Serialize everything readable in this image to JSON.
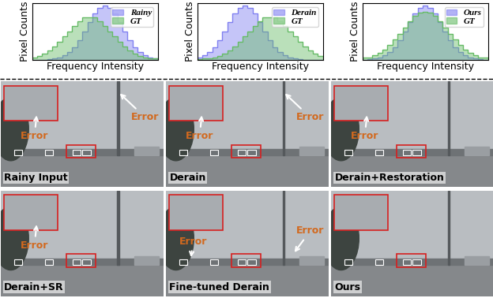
{
  "chart_data": [
    {
      "type": "histogram",
      "x_label": "Frequency Intensity",
      "y_label": "Pixel Counts",
      "bins": [
        0,
        1,
        2,
        3,
        4,
        5,
        6,
        7,
        8,
        9,
        10,
        11,
        12,
        13,
        14,
        15,
        16,
        17,
        18,
        19,
        20,
        21,
        22,
        23,
        24,
        25
      ],
      "xlim": [
        0,
        25
      ],
      "ylim": [
        0,
        100
      ],
      "tick_labels": false,
      "legend": "upper right",
      "series": [
        {
          "name": "Rainy",
          "color": "#8080f0",
          "values": [
            0,
            0,
            0,
            1,
            2,
            4,
            8,
            13,
            22,
            34,
            49,
            66,
            81,
            91,
            95,
            91,
            81,
            66,
            49,
            34,
            22,
            13,
            8,
            4,
            2
          ]
        },
        {
          "name": "GT",
          "color": "#66bb66",
          "values": [
            4,
            7,
            11,
            16,
            23,
            31,
            41,
            50,
            60,
            68,
            74,
            75,
            74,
            68,
            60,
            50,
            41,
            31,
            23,
            16,
            11,
            7,
            4,
            2,
            2
          ]
        }
      ]
    },
    {
      "type": "histogram",
      "x_label": "Frequency Intensity",
      "y_label": "Pixel Counts",
      "bins": [
        0,
        1,
        2,
        3,
        4,
        5,
        6,
        7,
        8,
        9,
        10,
        11,
        12,
        13,
        14,
        15,
        16,
        17,
        18,
        19,
        20,
        21,
        22,
        23,
        24,
        25
      ],
      "xlim": [
        0,
        25
      ],
      "ylim": [
        0,
        100
      ],
      "tick_labels": false,
      "legend": "upper right",
      "series": [
        {
          "name": "Derain",
          "color": "#8080f0",
          "values": [
            4,
            8,
            13,
            22,
            34,
            49,
            66,
            81,
            91,
            95,
            91,
            81,
            66,
            49,
            34,
            22,
            13,
            8,
            4,
            2,
            1,
            0,
            0,
            0,
            0
          ]
        },
        {
          "name": "GT",
          "color": "#66bb66",
          "values": [
            1,
            2,
            2,
            4,
            7,
            11,
            16,
            23,
            31,
            41,
            50,
            60,
            68,
            74,
            75,
            74,
            68,
            60,
            50,
            41,
            31,
            23,
            16,
            11,
            7
          ]
        }
      ]
    },
    {
      "type": "histogram",
      "x_label": "Frequency Intensity",
      "y_label": "Pixel Counts",
      "bins": [
        0,
        1,
        2,
        3,
        4,
        5,
        6,
        7,
        8,
        9,
        10,
        11,
        12,
        13,
        14,
        15,
        16,
        17,
        18,
        19,
        20,
        21,
        22,
        23,
        24,
        25
      ],
      "xlim": [
        0,
        25
      ],
      "ylim": [
        0,
        100
      ],
      "tick_labels": false,
      "legend": "upper right",
      "series": [
        {
          "name": "Ours",
          "color": "#8080f0",
          "values": [
            0,
            1,
            2,
            4,
            8,
            13,
            22,
            34,
            49,
            66,
            81,
            91,
            95,
            91,
            81,
            66,
            49,
            34,
            22,
            13,
            8,
            4,
            2,
            1,
            0
          ]
        },
        {
          "name": "GT",
          "color": "#66bb66",
          "values": [
            3,
            4,
            8,
            12,
            18,
            26,
            35,
            46,
            57,
            68,
            77,
            83,
            85,
            83,
            77,
            68,
            57,
            46,
            35,
            26,
            18,
            12,
            8,
            4,
            3
          ]
        }
      ]
    }
  ],
  "panels": [
    {
      "label": "Rainy Input",
      "errors": [
        "Error",
        "Error"
      ]
    },
    {
      "label": "Derain",
      "errors": [
        "Error",
        "Error"
      ]
    },
    {
      "label": "Derain+Restoration",
      "errors": [
        "Error"
      ]
    },
    {
      "label": "Derain+SR",
      "errors": [
        "Error"
      ]
    },
    {
      "label": "Fine-tuned Derain",
      "errors": [
        "Error",
        "Error"
      ]
    },
    {
      "label": "Ours",
      "errors": []
    }
  ]
}
